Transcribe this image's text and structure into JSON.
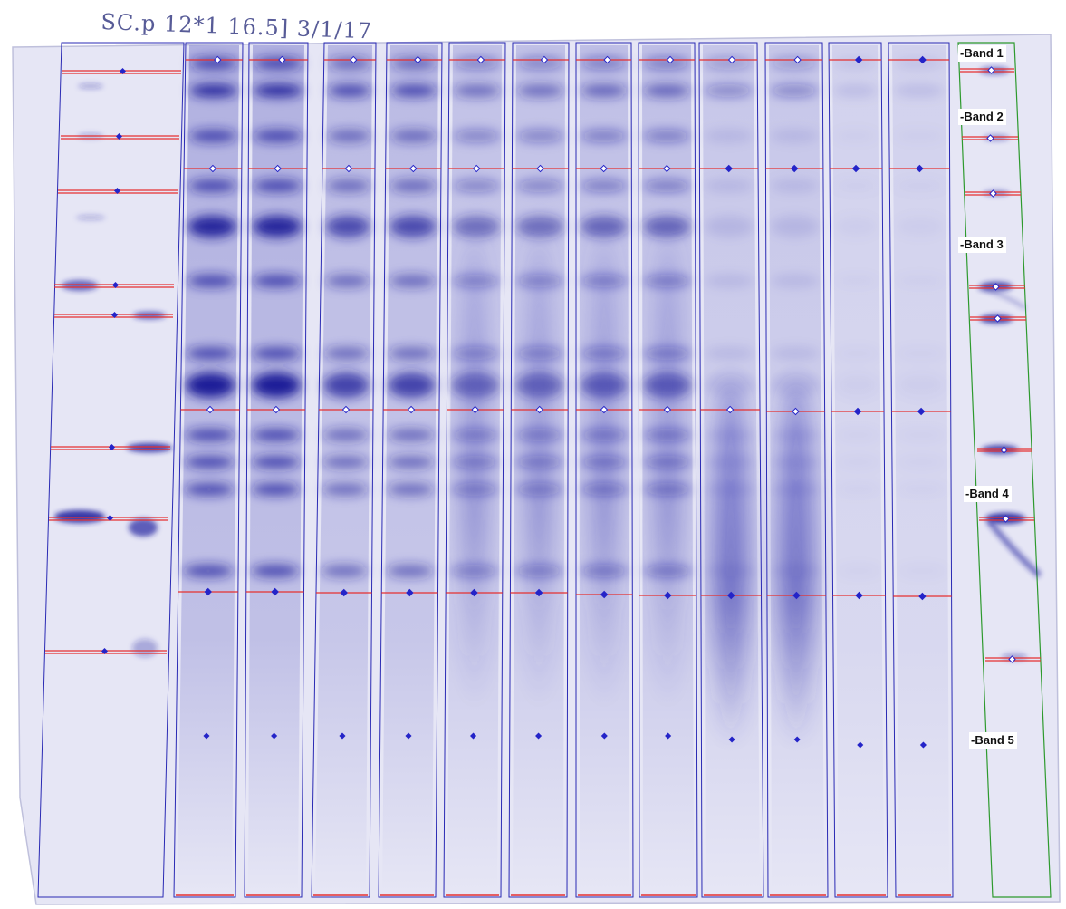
{
  "handwritten_note": "SC.p 12*1 16.5] 3/1/17",
  "band_labels": [
    "-Band 1",
    "-Band 2",
    "-Band 3",
    "-Band 4",
    "-Band 5"
  ],
  "colors": {
    "background": "#e6e6f5",
    "stain": "#1f1f9c",
    "lane_outline": "#2a2ab4",
    "reference_lane_outline": "#2e9a2e",
    "band_line": "#e53030",
    "band_marker": "#2424c8"
  },
  "lanes": [
    {
      "id": "ladder"
    },
    {
      "id": "lane-1"
    },
    {
      "id": "lane-2"
    },
    {
      "id": "lane-3"
    },
    {
      "id": "lane-4"
    },
    {
      "id": "lane-5"
    },
    {
      "id": "lane-6"
    },
    {
      "id": "lane-7"
    },
    {
      "id": "lane-8"
    },
    {
      "id": "lane-9"
    },
    {
      "id": "lane-10"
    },
    {
      "id": "lane-11"
    },
    {
      "id": "lane-12"
    },
    {
      "id": "reference-lane"
    }
  ]
}
